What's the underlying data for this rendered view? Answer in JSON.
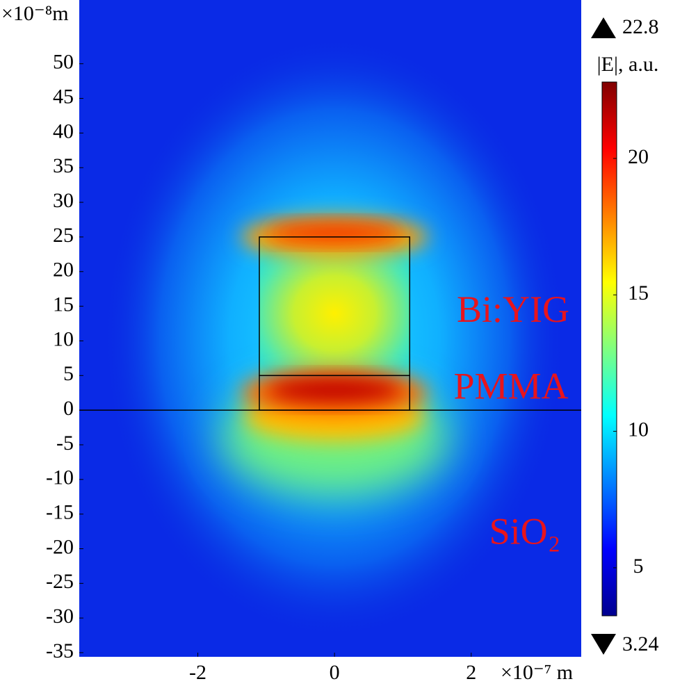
{
  "chart_data": {
    "type": "field",
    "x_unit": "×10⁻⁷ m",
    "y_unit": "×10⁻⁸m",
    "xlim": [
      -3.735,
      3.61
    ],
    "ylim": [
      -35.6,
      59.2
    ],
    "xticks": [
      -2,
      0,
      2
    ],
    "yticks": [
      -35,
      -30,
      -25,
      -20,
      -15,
      -10,
      -5,
      0,
      5,
      10,
      15,
      20,
      25,
      30,
      35,
      40,
      45,
      50
    ],
    "substrate_top": 0,
    "regions": [
      {
        "label": "Bi:YIG",
        "x": [
          -1.1,
          1.1
        ],
        "y": [
          5,
          25
        ]
      },
      {
        "label": "PMMA",
        "x": [
          -1.1,
          1.1
        ],
        "y": [
          0,
          5
        ]
      }
    ],
    "substrate_label": "SiO₂",
    "colorbar": {
      "label": "|E|, a.u.",
      "min": 3.24,
      "max": 22.8,
      "ticks": [
        5,
        10,
        15,
        20
      ],
      "colormap": "jet"
    }
  }
}
